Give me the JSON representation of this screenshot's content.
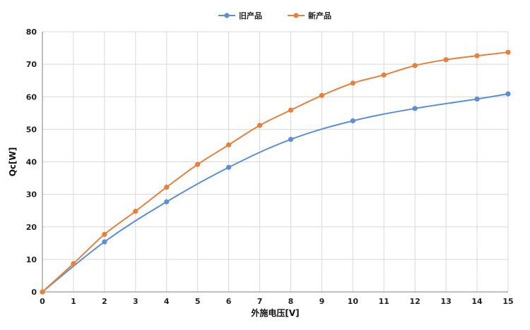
{
  "chart_data": {
    "type": "line",
    "xlabel": "外施电压[V]",
    "ylabel": "Qc[W]",
    "xlim": [
      0,
      15
    ],
    "ylim": [
      0,
      80
    ],
    "x_ticks": [
      "0",
      "1",
      "2",
      "3",
      "4",
      "5",
      "6",
      "7",
      "8",
      "9",
      "10",
      "11",
      "12",
      "13",
      "14",
      "15"
    ],
    "y_ticks": [
      "0",
      "10",
      "20",
      "30",
      "40",
      "50",
      "60",
      "70",
      "80"
    ],
    "grid": true,
    "legend_position": "top-center",
    "series": [
      {
        "name": "旧产品",
        "color": "#5b8fd6",
        "points": [
          [
            0,
            0
          ],
          [
            2,
            15.4
          ],
          [
            4,
            27.7
          ],
          [
            6,
            38.3
          ],
          [
            8,
            46.9
          ],
          [
            10,
            52.6
          ],
          [
            12,
            56.4
          ],
          [
            14,
            59.3
          ],
          [
            15,
            60.9
          ]
        ]
      },
      {
        "name": "新产品",
        "color": "#e8803a",
        "points": [
          [
            0,
            0
          ],
          [
            1,
            8.7
          ],
          [
            2,
            17.7
          ],
          [
            3,
            24.8
          ],
          [
            4,
            32.2
          ],
          [
            5,
            39.2
          ],
          [
            6,
            45.2
          ],
          [
            7,
            51.2
          ],
          [
            8,
            55.9
          ],
          [
            9,
            60.4
          ],
          [
            10,
            64.2
          ],
          [
            11,
            66.7
          ],
          [
            12,
            69.6
          ],
          [
            13,
            71.4
          ],
          [
            14,
            72.6
          ],
          [
            15,
            73.7
          ]
        ]
      }
    ]
  }
}
